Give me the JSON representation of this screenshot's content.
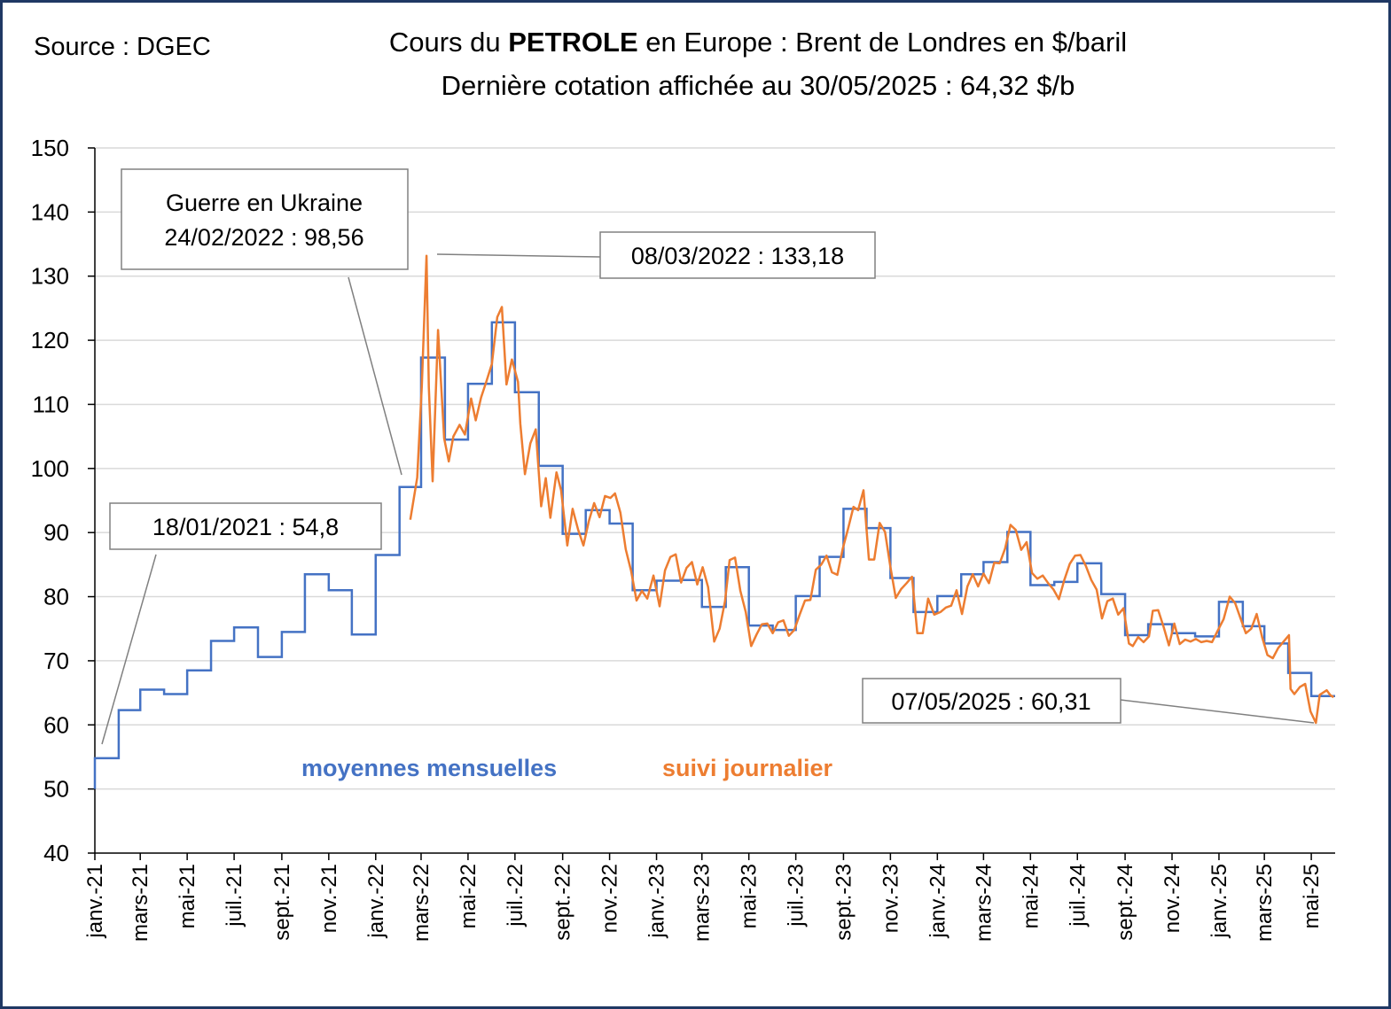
{
  "source": "Source : DGEC",
  "title_line1": {
    "pre": "Cours du ",
    "bold": "PETROLE",
    "post": " en Europe : Brent de Londres en $/baril"
  },
  "title_line2": "Dernière cotation affichée au 30/05/2025 : 64,32 $/b",
  "colors": {
    "monthly": "#4472c4",
    "daily": "#ed7d31",
    "frame": "#1f3864",
    "grid": "#d9d9d9"
  },
  "annotations": {
    "ukraine_line1": "Guerre en Ukraine",
    "ukraine_line2": "24/02/2022 : 98,56",
    "peak": "08/03/2022 : 133,18",
    "start": "18/01/2021 : 54,8",
    "low": "07/05/2025 : 60,31"
  },
  "chart_data": {
    "type": "line",
    "title": "Cours du PETROLE en Europe : Brent de Londres en $/baril",
    "subtitle": "Dernière cotation affichée au 30/05/2025 : 64,32 $/b",
    "ylim": [
      40,
      150
    ],
    "yticks": [
      "40",
      "50",
      "60",
      "70",
      "80",
      "90",
      "100",
      "110",
      "120",
      "130",
      "140",
      "150"
    ],
    "xtick_labels": [
      "janv.-21",
      "mars-21",
      "mai-21",
      "juil.-21",
      "sept.-21",
      "nov.-21",
      "janv.-22",
      "mars-22",
      "mai-22",
      "juil.-22",
      "sept.-22",
      "nov.-22",
      "janv.-23",
      "mars-23",
      "mai-23",
      "juil.-23",
      "sept.-23",
      "nov.-23",
      "janv.-24",
      "mars-24",
      "mai-24",
      "juil.-24",
      "sept.-24",
      "nov.-24",
      "janv.-25",
      "mars-25",
      "mai-25"
    ],
    "series": [
      {
        "name": "moyennes mensuelles",
        "months": [
          "2021-01",
          "2021-02",
          "2021-03",
          "2021-04",
          "2021-05",
          "2021-06",
          "2021-07",
          "2021-08",
          "2021-09",
          "2021-10",
          "2021-11",
          "2021-12",
          "2022-01",
          "2022-02",
          "2022-03",
          "2022-04",
          "2022-05",
          "2022-06",
          "2022-07",
          "2022-08",
          "2022-09",
          "2022-10",
          "2022-11",
          "2022-12",
          "2023-01",
          "2023-02",
          "2023-03",
          "2023-04",
          "2023-05",
          "2023-06",
          "2023-07",
          "2023-08",
          "2023-09",
          "2023-10",
          "2023-11",
          "2023-12",
          "2024-01",
          "2024-02",
          "2024-03",
          "2024-04",
          "2024-05",
          "2024-06",
          "2024-07",
          "2024-08",
          "2024-09",
          "2024-10",
          "2024-11",
          "2024-12",
          "2025-01",
          "2025-02",
          "2025-03",
          "2025-04",
          "2025-05"
        ],
        "values": [
          54.8,
          62.3,
          65.5,
          64.8,
          68.5,
          73.1,
          75.2,
          70.6,
          74.5,
          83.5,
          81.0,
          74.1,
          86.5,
          97.1,
          117.3,
          104.5,
          113.2,
          122.8,
          111.9,
          100.4,
          89.8,
          93.5,
          91.4,
          81.0,
          82.5,
          82.6,
          78.4,
          84.6,
          75.5,
          74.8,
          80.1,
          86.2,
          93.7,
          90.7,
          82.9,
          77.6,
          80.1,
          83.5,
          85.4,
          90.1,
          81.8,
          82.3,
          85.2,
          80.4,
          74.0,
          75.7,
          74.3,
          73.8,
          79.2,
          75.4,
          72.7,
          68.1,
          64.5
        ]
      },
      {
        "name": "suivi journalier",
        "dates": [
          "2022-02-15",
          "2022-02-24",
          "2022-03-02",
          "2022-03-08",
          "2022-03-11",
          "2022-03-16",
          "2022-03-23",
          "2022-03-31",
          "2022-04-06",
          "2022-04-12",
          "2022-04-20",
          "2022-04-27",
          "2022-05-05",
          "2022-05-11",
          "2022-05-18",
          "2022-05-25",
          "2022-06-01",
          "2022-06-08",
          "2022-06-14",
          "2022-06-20",
          "2022-06-27",
          "2022-07-05",
          "2022-07-08",
          "2022-07-14",
          "2022-07-21",
          "2022-07-28",
          "2022-08-04",
          "2022-08-10",
          "2022-08-16",
          "2022-08-24",
          "2022-08-30",
          "2022-09-07",
          "2022-09-14",
          "2022-09-21",
          "2022-09-28",
          "2022-10-05",
          "2022-10-12",
          "2022-10-19",
          "2022-10-26",
          "2022-11-02",
          "2022-11-08",
          "2022-11-15",
          "2022-11-22",
          "2022-11-29",
          "2022-12-06",
          "2022-12-13",
          "2022-12-20",
          "2022-12-28",
          "2023-01-05",
          "2023-01-12",
          "2023-01-19",
          "2023-01-26",
          "2023-02-02",
          "2023-02-09",
          "2023-02-16",
          "2023-02-23",
          "2023-03-02",
          "2023-03-09",
          "2023-03-17",
          "2023-03-24",
          "2023-03-31",
          "2023-04-06",
          "2023-04-13",
          "2023-04-20",
          "2023-04-27",
          "2023-05-04",
          "2023-05-11",
          "2023-05-18",
          "2023-05-25",
          "2023-06-01",
          "2023-06-08",
          "2023-06-15",
          "2023-06-22",
          "2023-06-29",
          "2023-07-06",
          "2023-07-13",
          "2023-07-20",
          "2023-07-27",
          "2023-08-03",
          "2023-08-10",
          "2023-08-17",
          "2023-08-24",
          "2023-08-31",
          "2023-09-07",
          "2023-09-14",
          "2023-09-20",
          "2023-09-27",
          "2023-10-04",
          "2023-10-11",
          "2023-10-18",
          "2023-10-25",
          "2023-11-01",
          "2023-11-08",
          "2023-11-15",
          "2023-11-22",
          "2023-11-29",
          "2023-12-06",
          "2023-12-13",
          "2023-12-20",
          "2023-12-28",
          "2024-01-05",
          "2024-01-12",
          "2024-01-19",
          "2024-01-26",
          "2024-02-02",
          "2024-02-09",
          "2024-02-16",
          "2024-02-23",
          "2024-03-01",
          "2024-03-08",
          "2024-03-15",
          "2024-03-22",
          "2024-03-29",
          "2024-04-05",
          "2024-04-12",
          "2024-04-19",
          "2024-04-26",
          "2024-05-03",
          "2024-05-10",
          "2024-05-17",
          "2024-05-24",
          "2024-05-31",
          "2024-06-07",
          "2024-06-14",
          "2024-06-21",
          "2024-06-28",
          "2024-07-05",
          "2024-07-12",
          "2024-07-19",
          "2024-07-26",
          "2024-08-02",
          "2024-08-09",
          "2024-08-16",
          "2024-08-23",
          "2024-08-30",
          "2024-09-06",
          "2024-09-11",
          "2024-09-18",
          "2024-09-25",
          "2024-10-02",
          "2024-10-07",
          "2024-10-14",
          "2024-10-21",
          "2024-10-28",
          "2024-11-04",
          "2024-11-11",
          "2024-11-18",
          "2024-11-25",
          "2024-12-02",
          "2024-12-09",
          "2024-12-16",
          "2024-12-23",
          "2024-12-30",
          "2025-01-07",
          "2025-01-15",
          "2025-01-22",
          "2025-01-29",
          "2025-02-05",
          "2025-02-12",
          "2025-02-19",
          "2025-02-26",
          "2025-03-05",
          "2025-03-12",
          "2025-03-19",
          "2025-03-26",
          "2025-04-02",
          "2025-04-04",
          "2025-04-09",
          "2025-04-16",
          "2025-04-23",
          "2025-04-30",
          "2025-05-07",
          "2025-05-12",
          "2025-05-16",
          "2025-05-21",
          "2025-05-26",
          "2025-05-30"
        ],
        "values": [
          92.0,
          98.56,
          112.9,
          133.18,
          112.7,
          98.0,
          121.6,
          104.7,
          101.1,
          105.0,
          106.8,
          105.3,
          110.9,
          107.5,
          111.1,
          113.6,
          116.3,
          123.6,
          125.2,
          113.1,
          117.0,
          113.5,
          107.0,
          99.1,
          103.9,
          106.1,
          94.1,
          98.5,
          92.3,
          99.4,
          96.6,
          88.0,
          93.7,
          90.5,
          88.0,
          91.8,
          94.6,
          92.4,
          95.7,
          95.4,
          96.1,
          93.1,
          87.4,
          84.0,
          79.4,
          80.9,
          79.7,
          83.3,
          78.5,
          84.1,
          86.2,
          86.6,
          82.2,
          84.5,
          85.4,
          81.9,
          84.6,
          81.5,
          73.0,
          75.0,
          79.3,
          85.7,
          86.1,
          80.9,
          77.6,
          72.3,
          74.1,
          75.7,
          75.8,
          74.3,
          76.0,
          76.3,
          73.9,
          74.8,
          77.2,
          79.4,
          79.5,
          84.2,
          85.0,
          86.4,
          83.8,
          83.4,
          87.5,
          90.6,
          94.0,
          93.5,
          96.6,
          85.8,
          85.8,
          91.5,
          90.1,
          84.6,
          79.8,
          81.2,
          82.1,
          83.1,
          74.3,
          74.3,
          79.7,
          77.2,
          77.6,
          78.3,
          78.6,
          81.0,
          77.3,
          81.6,
          83.5,
          81.6,
          83.6,
          82.1,
          85.3,
          85.2,
          87.5,
          91.2,
          90.4,
          87.3,
          88.5,
          83.7,
          82.8,
          83.3,
          82.1,
          81.1,
          79.6,
          82.6,
          85.1,
          86.4,
          86.5,
          84.8,
          82.6,
          81.1,
          76.6,
          79.3,
          79.7,
          77.2,
          78.2,
          72.7,
          72.3,
          73.7,
          72.9,
          73.8,
          77.8,
          77.9,
          75.3,
          72.4,
          75.8,
          72.6,
          73.3,
          73.0,
          73.4,
          72.9,
          73.1,
          72.9,
          74.6,
          76.5,
          80.0,
          79.0,
          76.6,
          74.3,
          75.0,
          77.3,
          73.7,
          70.9,
          70.4,
          72.0,
          73.0,
          74.0,
          65.6,
          64.8,
          65.9,
          66.4,
          62.1,
          60.31,
          64.7,
          65.0,
          65.4,
          64.6,
          64.32
        ]
      }
    ],
    "legend": {
      "monthly": "moyennes mensuelles",
      "daily": "suivi journalier"
    }
  }
}
